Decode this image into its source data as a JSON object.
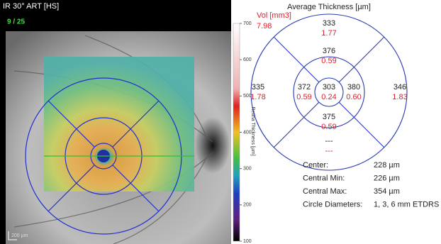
{
  "left_panel": {
    "title": "IR 30° ART [HS]",
    "slice": "9 / 25",
    "scale_bar": "200 µm",
    "colorbar": {
      "label": "Retina Thickness [µm]",
      "lim": [
        100,
        700
      ],
      "ticks": [
        700,
        600,
        500,
        400,
        300,
        200,
        100
      ]
    }
  },
  "etdrs": {
    "title": "Average Thickness [µm]",
    "volume_label": "Vol [mm3]",
    "volume": "7.98",
    "sectors": {
      "superior_outer": {
        "thickness": "333",
        "volume": "1.77"
      },
      "superior_inner": {
        "thickness": "376",
        "volume": "0.59"
      },
      "temporal_outer": {
        "thickness": "335",
        "volume": "1.78"
      },
      "temporal_inner": {
        "thickness": "372",
        "volume": "0.59"
      },
      "center": {
        "thickness": "303",
        "volume": "0.24"
      },
      "nasal_inner": {
        "thickness": "380",
        "volume": "0.60"
      },
      "nasal_outer": {
        "thickness": "346",
        "volume": "1.83"
      },
      "inferior_inner": {
        "thickness": "375",
        "volume": "0.59"
      },
      "inferior_outer": {
        "thickness": "---",
        "volume": "---"
      }
    }
  },
  "stats": {
    "rows": [
      [
        "Center:",
        "228 µm"
      ],
      [
        "Central Min:",
        "226 µm"
      ],
      [
        "Central Max:",
        "354 µm"
      ],
      [
        "Circle Diameters:",
        "1, 3, 6 mm ETDRS"
      ]
    ]
  }
}
